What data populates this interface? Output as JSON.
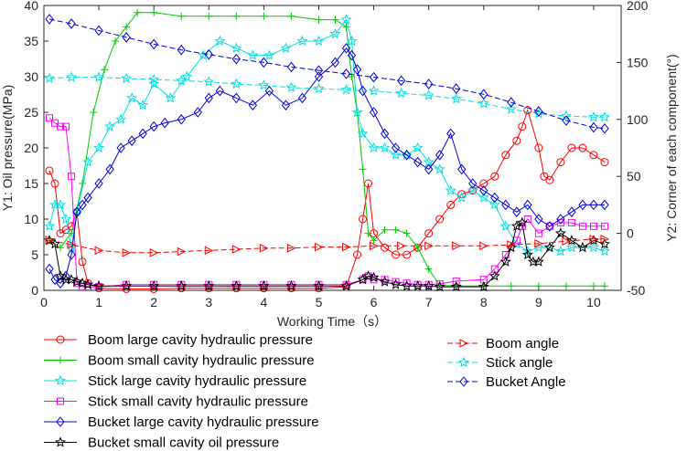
{
  "chart_data": {
    "type": "line",
    "title": "",
    "xlabel": "Working Time（s）",
    "ylabel_left": "Y1:  Oil pressure(MPa)",
    "ylabel_right": "Y2:  Corner of each component(°)",
    "xlim": [
      0,
      10.5
    ],
    "ylim_left": [
      0,
      40
    ],
    "ylim_right": [
      -50,
      200
    ],
    "x_ticks": [
      "0",
      "1",
      "2",
      "3",
      "4",
      "5",
      "6",
      "7",
      "8",
      "9",
      "10"
    ],
    "y_left_ticks": [
      "0",
      "5",
      "10",
      "15",
      "20",
      "25",
      "30",
      "35",
      "40"
    ],
    "y_right_ticks": [
      "-50",
      "0",
      "50",
      "100",
      "150",
      "200"
    ],
    "series": [
      {
        "name": "Boom large cavity hydraulic pressure",
        "axis": "left",
        "color": "#ff0000",
        "marker": "circle",
        "x": [
          0.1,
          0.2,
          0.3,
          0.4,
          0.5,
          0.6,
          0.7,
          0.8,
          1.0,
          1.5,
          2.0,
          2.5,
          3.0,
          3.5,
          4.0,
          4.5,
          5.0,
          5.5,
          5.7,
          5.8,
          5.9,
          6.0,
          6.2,
          6.4,
          6.6,
          6.8,
          7.0,
          7.2,
          7.4,
          7.6,
          7.8,
          8.0,
          8.2,
          8.4,
          8.6,
          8.7,
          8.8,
          9.0,
          9.1,
          9.2,
          9.4,
          9.6,
          9.8,
          10.0,
          10.2
        ],
        "y": [
          16.8,
          15,
          8,
          8.5,
          9,
          11,
          4,
          1,
          0.3,
          0.2,
          0.2,
          0.3,
          0.3,
          0.3,
          0.3,
          0.3,
          0.3,
          0.5,
          5,
          10,
          15,
          8,
          6,
          5,
          5,
          6,
          8,
          10,
          12,
          13.5,
          14,
          15,
          16,
          19,
          21,
          23,
          25.3,
          20,
          16,
          15.5,
          18,
          20,
          20,
          19,
          18
        ]
      },
      {
        "name": "Boom small cavity hydraulic pressure",
        "axis": "left",
        "color": "#00cc00",
        "marker": "plus",
        "x": [
          0.1,
          0.3,
          0.5,
          0.7,
          0.9,
          1.1,
          1.3,
          1.5,
          1.7,
          2.0,
          2.5,
          3.0,
          3.5,
          4.0,
          4.5,
          5.0,
          5.3,
          5.5,
          5.6,
          5.7,
          5.8,
          5.9,
          6.0,
          6.2,
          6.4,
          6.6,
          6.8,
          7.0,
          7.2,
          7.5,
          8.0,
          8.5,
          9.0,
          9.5,
          10.0,
          10.2
        ],
        "y": [
          7,
          6,
          8,
          15,
          25,
          31,
          35,
          37,
          39,
          39,
          38.5,
          38.5,
          38.5,
          38.5,
          38.5,
          38,
          38,
          37,
          30,
          25,
          17,
          8,
          7,
          8.5,
          8.5,
          8,
          6,
          3,
          0.7,
          0.6,
          0.6,
          0.6,
          0.6,
          0.6,
          0.6,
          0.6
        ]
      },
      {
        "name": "Stick large cavity hydraulic pressure",
        "axis": "left",
        "color": "#00e0e0",
        "marker": "star",
        "x": [
          0.1,
          0.2,
          0.3,
          0.4,
          0.5,
          0.6,
          0.8,
          1.0,
          1.2,
          1.4,
          1.6,
          1.8,
          2.0,
          2.3,
          2.6,
          2.9,
          3.2,
          3.5,
          3.8,
          4.1,
          4.4,
          4.7,
          5.0,
          5.3,
          5.5,
          5.6,
          5.7,
          5.8,
          6.0,
          6.2,
          6.4,
          6.6,
          6.8,
          7.0,
          7.2,
          7.4,
          7.6,
          7.8,
          8.0,
          8.2,
          8.4,
          8.6,
          8.8,
          9.0,
          9.2,
          9.4,
          9.6,
          9.8,
          10.0,
          10.2
        ],
        "y": [
          9,
          12,
          12,
          10,
          6,
          11,
          18,
          20,
          23,
          24,
          27,
          26,
          29,
          27,
          30,
          33,
          35,
          34,
          33,
          33,
          34,
          35,
          35,
          36,
          38,
          35,
          25,
          22,
          20,
          20,
          19,
          19,
          20,
          18,
          17,
          14,
          13,
          14,
          13,
          12,
          9,
          6.5,
          5.5,
          6,
          6,
          5.5,
          6,
          6,
          6,
          5.5
        ]
      },
      {
        "name": "Stick small cavity hydraulic pressure",
        "axis": "left",
        "color": "#ff00ff",
        "marker": "square",
        "x": [
          0.1,
          0.2,
          0.3,
          0.4,
          0.5,
          0.6,
          0.7,
          0.8,
          1.0,
          1.5,
          2.0,
          2.5,
          3.0,
          3.5,
          4.0,
          4.5,
          5.0,
          5.5,
          5.8,
          5.9,
          6.0,
          6.2,
          6.4,
          6.6,
          6.8,
          7.0,
          7.2,
          7.5,
          8.0,
          8.2,
          8.4,
          8.6,
          8.7,
          8.8,
          9.0,
          9.2,
          9.4,
          9.6,
          9.8,
          10.0,
          10.2
        ],
        "y": [
          24.2,
          23.5,
          23,
          23,
          16,
          1,
          0.5,
          0.5,
          0.5,
          0.8,
          0.8,
          0.8,
          0.8,
          0.8,
          0.8,
          0.8,
          0.8,
          0.8,
          1.5,
          2.0,
          1.5,
          1.5,
          1.2,
          1.0,
          0.8,
          0.8,
          0.9,
          1.3,
          1.5,
          3,
          5,
          7,
          9,
          10,
          8,
          9,
          9.5,
          9.5,
          9,
          9,
          9
        ]
      },
      {
        "name": "Bucket large cavity hydraulic pressure",
        "axis": "left",
        "color": "#0000dd",
        "marker": "diamond",
        "x": [
          0.1,
          0.2,
          0.3,
          0.4,
          0.5,
          0.6,
          0.7,
          0.8,
          1.0,
          1.2,
          1.4,
          1.6,
          1.8,
          2.0,
          2.2,
          2.5,
          2.8,
          3.0,
          3.2,
          3.5,
          3.8,
          4.1,
          4.4,
          4.7,
          5.0,
          5.3,
          5.5,
          5.6,
          5.7,
          5.8,
          6.0,
          6.2,
          6.4,
          6.6,
          6.8,
          7.0,
          7.2,
          7.4,
          7.6,
          7.8,
          8.0,
          8.2,
          8.4,
          8.6,
          8.8,
          9.0,
          9.2,
          9.4,
          9.6,
          9.8,
          10.0,
          10.2
        ],
        "y": [
          3,
          1.5,
          1,
          2,
          5,
          11,
          12,
          13,
          15,
          17,
          20,
          21,
          22,
          23,
          23.5,
          24,
          25,
          27,
          28,
          27,
          26,
          28,
          26,
          27,
          30,
          32,
          34,
          33,
          31,
          28,
          25,
          22,
          20,
          19,
          18,
          17,
          19,
          22,
          17,
          15,
          14,
          13,
          12,
          11,
          12,
          10,
          9,
          10,
          11,
          12,
          12,
          12
        ]
      },
      {
        "name": "Bucket small cavity oil pressure",
        "axis": "left",
        "color": "#000000",
        "marker": "star",
        "x": [
          0.1,
          0.2,
          0.3,
          0.4,
          0.5,
          0.6,
          0.7,
          0.8,
          1.0,
          1.5,
          2.0,
          2.5,
          3.0,
          3.5,
          4.0,
          4.5,
          5.0,
          5.5,
          5.8,
          5.9,
          6.0,
          6.2,
          6.4,
          6.6,
          6.8,
          7.0,
          7.2,
          7.5,
          8.0,
          8.2,
          8.4,
          8.5,
          8.6,
          8.7,
          8.8,
          8.9,
          9.0,
          9.2,
          9.4,
          9.6,
          9.8,
          10.0,
          10.2
        ],
        "y": [
          7,
          6.5,
          2,
          1.5,
          1.5,
          1.2,
          1,
          0.8,
          0.6,
          0.6,
          0.6,
          0.6,
          0.6,
          0.6,
          0.6,
          0.6,
          0.6,
          0.6,
          1.5,
          2,
          1.8,
          1.2,
          0.8,
          0.6,
          0.6,
          0.6,
          0.5,
          0.5,
          0.5,
          2,
          4,
          6,
          9,
          9.5,
          5,
          4,
          4,
          6,
          8,
          7,
          6,
          7,
          6.5
        ]
      },
      {
        "name": "Boom angle",
        "axis": "right",
        "color": "#ff0000",
        "marker": "triangle-right",
        "dash": true,
        "x": [
          0.1,
          0.5,
          1.0,
          1.5,
          2.0,
          2.5,
          3.0,
          3.5,
          4.0,
          4.5,
          5.0,
          5.5,
          6.0,
          6.5,
          7.0,
          7.5,
          8.0,
          8.5,
          9.0,
          9.5,
          10.0,
          10.2
        ],
        "y": [
          -6,
          -10,
          -15,
          -17,
          -17,
          -16,
          -15,
          -14,
          -13,
          -13,
          -12,
          -12,
          -11,
          -11,
          -11,
          -11,
          -11,
          -10,
          -9,
          -7,
          -5,
          -5
        ]
      },
      {
        "name": "Stick angle",
        "axis": "right",
        "color": "#00e0e0",
        "marker": "star",
        "dash": true,
        "x": [
          0.1,
          0.5,
          1.0,
          1.5,
          2.0,
          2.5,
          3.0,
          3.5,
          4.0,
          4.5,
          5.0,
          5.5,
          6.0,
          6.5,
          7.0,
          7.5,
          8.0,
          8.5,
          9.0,
          9.5,
          10.0,
          10.2
        ],
        "y": [
          136,
          137,
          137,
          136,
          135,
          134,
          133,
          131,
          130,
          128,
          127,
          126,
          125,
          123,
          121,
          118,
          114,
          109,
          105,
          103,
          102,
          102
        ]
      },
      {
        "name": "Bucket Angle",
        "axis": "right",
        "color": "#0000dd",
        "marker": "diamond",
        "dash": true,
        "x": [
          0.1,
          0.5,
          1.0,
          1.5,
          2.0,
          2.5,
          3.0,
          3.5,
          4.0,
          4.5,
          5.0,
          5.5,
          6.0,
          6.5,
          7.0,
          7.5,
          8.0,
          8.5,
          9.0,
          9.5,
          10.0,
          10.2
        ],
        "y": [
          188,
          184,
          178,
          172,
          166,
          161,
          157,
          153,
          150,
          146,
          143,
          140,
          137,
          134,
          131,
          127,
          122,
          115,
          107,
          99,
          93,
          92
        ]
      }
    ],
    "legend_left": [
      "Boom large cavity hydraulic pressure",
      "Boom small cavity hydraulic pressure",
      "Stick large cavity hydraulic pressure",
      "Stick small cavity hydraulic pressure",
      "Bucket large cavity hydraulic pressure",
      "Bucket small cavity oil pressure"
    ],
    "legend_right": [
      "Boom angle",
      "Stick angle",
      "Bucket Angle"
    ]
  }
}
